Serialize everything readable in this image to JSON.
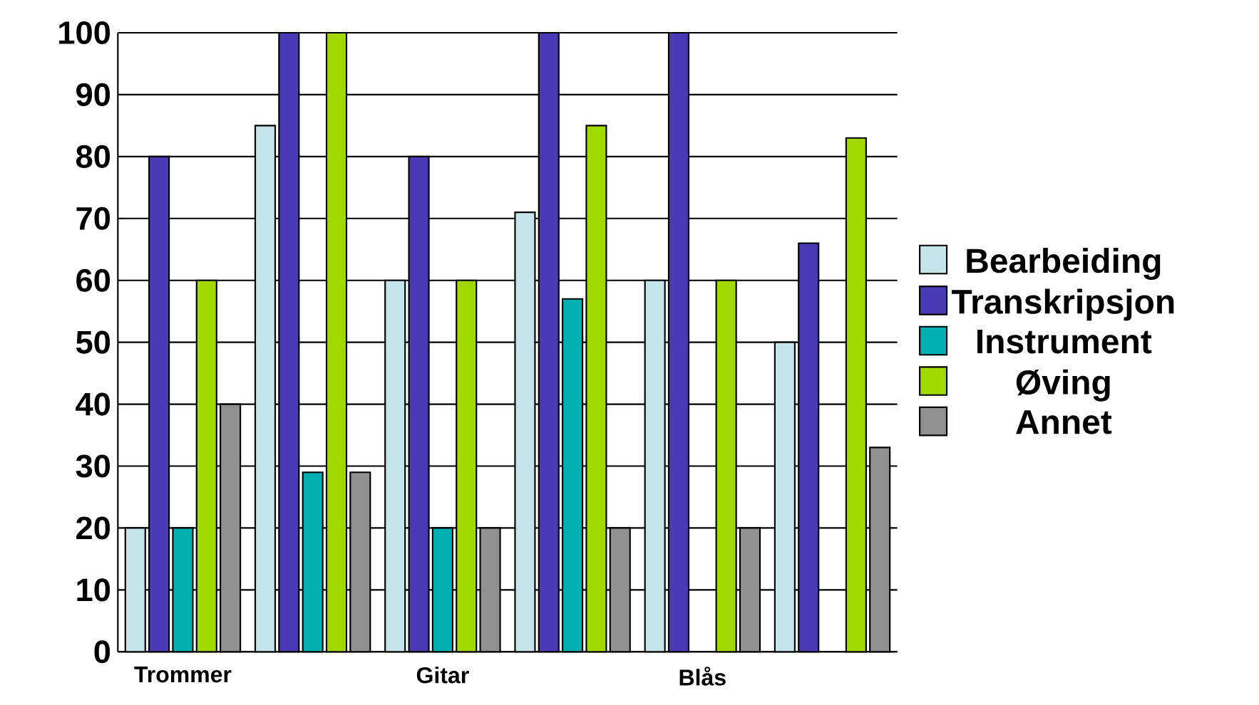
{
  "chart_data": {
    "type": "bar",
    "categories": [
      "Trommer",
      null,
      "Gitar",
      null,
      "Blås",
      null
    ],
    "series": [
      {
        "name": "Bearbeiding",
        "color": "#c4e4ea",
        "values": [
          20,
          85,
          60,
          71,
          60,
          50
        ]
      },
      {
        "name": "Transkripsjon",
        "color": "#4a3ab3",
        "values": [
          80,
          100,
          80,
          100,
          100,
          66
        ]
      },
      {
        "name": "Instrument",
        "color": "#00b0b0",
        "values": [
          20,
          29,
          20,
          57,
          null,
          null
        ]
      },
      {
        "name": "Øving",
        "color": "#a0d800",
        "values": [
          60,
          100,
          60,
          85,
          60,
          83
        ]
      },
      {
        "name": "Annet",
        "color": "#909090",
        "values": [
          40,
          29,
          20,
          20,
          20,
          33
        ]
      }
    ],
    "ylim": [
      0,
      100
    ],
    "yticks": [
      0,
      10,
      20,
      30,
      40,
      50,
      60,
      70,
      80,
      90,
      100
    ],
    "grid": "y",
    "legend": "right"
  }
}
